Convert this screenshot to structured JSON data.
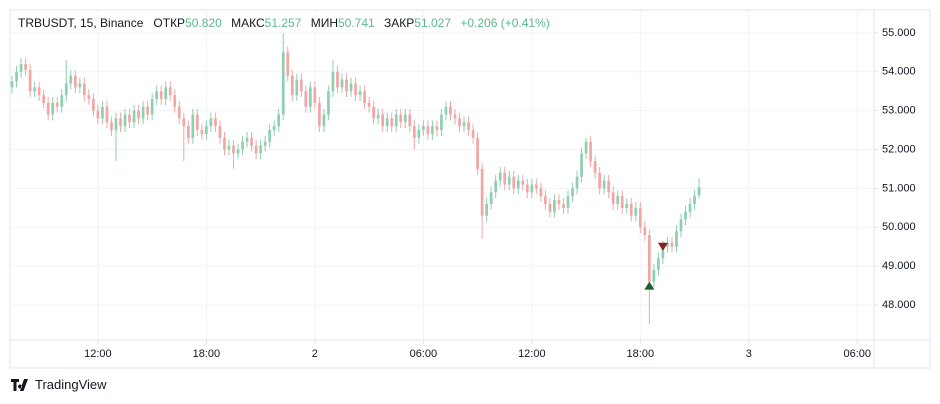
{
  "chart_data": {
    "type": "candlestick",
    "header": {
      "symbol": "TRBUSDT, 15, Binance",
      "open_label": "ОТКР",
      "open": "50.820",
      "high_label": "МАКС",
      "high": "51.257",
      "low_label": "МИН",
      "low": "50.741",
      "close_label": "ЗАКР",
      "close": "51.027",
      "change": "+0.206 (+0.41%)"
    },
    "brand": "TradingView",
    "up_color": "#8fcfb0",
    "down_color": "#f2a6a6",
    "xlim": [
      -0.45,
      190.7
    ],
    "ylim": [
      47.1,
      55.59
    ],
    "grid": true,
    "xticks": [
      {
        "value": 19,
        "label": "12:00"
      },
      {
        "value": 43,
        "label": "18:00"
      },
      {
        "value": 67,
        "label": "2"
      },
      {
        "value": 91,
        "label": "06:00"
      },
      {
        "value": 115,
        "label": "12:00"
      },
      {
        "value": 139,
        "label": "18:00"
      },
      {
        "value": 163,
        "label": "3"
      },
      {
        "value": 187,
        "label": "06:00"
      }
    ],
    "yticks": [
      {
        "value": 48,
        "label": "48.000"
      },
      {
        "value": 49,
        "label": "49.000"
      },
      {
        "value": 50,
        "label": "50.000"
      },
      {
        "value": 51,
        "label": "51.000"
      },
      {
        "value": 52,
        "label": "52.000"
      },
      {
        "value": 53,
        "label": "53.000"
      },
      {
        "value": 54,
        "label": "54.000"
      },
      {
        "value": 55,
        "label": "55.000"
      }
    ],
    "open": [
      53.6,
      53.75,
      54.0,
      54.2,
      54.05,
      53.5,
      53.6,
      53.4,
      53.2,
      52.9,
      53.2,
      53.1,
      53.4,
      53.7,
      53.9,
      53.6,
      53.7,
      53.4,
      53.3,
      53.0,
      52.8,
      53.1,
      52.7,
      52.5,
      52.8,
      52.6,
      52.9,
      52.7,
      53.0,
      52.8,
      53.1,
      52.9,
      53.3,
      53.5,
      53.3,
      53.6,
      53.4,
      53.1,
      52.8,
      52.6,
      52.3,
      52.9,
      52.5,
      52.4,
      52.6,
      52.8,
      52.6,
      52.3,
      52.0,
      52.1,
      51.9,
      52.0,
      52.2,
      52.3,
      52.1,
      51.9,
      52.1,
      52.2,
      52.5,
      52.6,
      52.9,
      54.5,
      53.9,
      53.4,
      53.8,
      53.5,
      53.1,
      53.6,
      53.2,
      52.6,
      52.9,
      53.5,
      54.0,
      53.6,
      53.8,
      53.5,
      53.7,
      53.4,
      53.5,
      53.2,
      53.1,
      52.8,
      52.9,
      52.6,
      52.8,
      52.6,
      52.9,
      52.7,
      52.9,
      52.6,
      52.3,
      52.5,
      52.6,
      52.4,
      52.6,
      52.5,
      52.9,
      53.1,
      52.9,
      52.8,
      52.6,
      52.7,
      52.5,
      52.3,
      51.5,
      50.3,
      50.6,
      50.9,
      51.2,
      51.4,
      51.1,
      51.3,
      51.0,
      51.2,
      51.1,
      50.9,
      51.1,
      51.0,
      50.8,
      50.6,
      50.4,
      50.7,
      50.6,
      50.5,
      50.8,
      51.0,
      51.3,
      51.9,
      52.2,
      51.7,
      51.4,
      51.0,
      51.2,
      50.9,
      50.6,
      50.8,
      50.5,
      50.6,
      50.3,
      50.5,
      50.0,
      49.8,
      48.6,
      48.9,
      49.2,
      49.5,
      49.6,
      49.5,
      49.9,
      50.2,
      50.4,
      50.6,
      50.82
    ],
    "high": [
      53.9,
      54.15,
      54.35,
      54.35,
      54.2,
      53.75,
      53.75,
      53.55,
      53.35,
      53.35,
      53.35,
      53.55,
      54.3,
      54.05,
      54.05,
      53.85,
      53.85,
      53.55,
      53.45,
      53.15,
      53.25,
      53.25,
      52.85,
      52.95,
      52.95,
      53.05,
      53.05,
      53.15,
      53.15,
      53.25,
      53.25,
      53.45,
      53.65,
      53.65,
      53.75,
      53.75,
      53.55,
      53.25,
      52.95,
      52.75,
      53.05,
      53.05,
      52.65,
      52.75,
      52.95,
      52.95,
      52.75,
      52.45,
      52.25,
      52.25,
      52.15,
      52.35,
      52.45,
      52.45,
      52.25,
      52.25,
      52.35,
      52.65,
      52.75,
      53.05,
      55.0,
      54.65,
      54.05,
      53.95,
      53.95,
      53.65,
      53.75,
      53.75,
      53.35,
      53.05,
      53.65,
      54.3,
      54.15,
      53.95,
      53.95,
      53.85,
      53.85,
      53.65,
      53.65,
      53.35,
      53.25,
      53.05,
      53.05,
      52.95,
      52.95,
      53.05,
      53.05,
      53.05,
      53.05,
      52.75,
      52.65,
      52.75,
      52.75,
      52.75,
      52.75,
      53.05,
      53.25,
      53.25,
      53.05,
      52.95,
      52.85,
      52.85,
      52.65,
      52.45,
      51.65,
      50.75,
      51.05,
      51.35,
      51.55,
      51.55,
      51.45,
      51.45,
      51.35,
      51.35,
      51.25,
      51.25,
      51.25,
      51.15,
      50.95,
      50.75,
      50.85,
      50.85,
      50.75,
      50.95,
      51.15,
      51.45,
      52.05,
      52.3,
      52.35,
      51.85,
      51.55,
      51.35,
      51.35,
      51.05,
      50.95,
      50.95,
      50.75,
      50.75,
      50.65,
      50.65,
      50.15,
      49.95,
      49.05,
      49.35,
      49.65,
      49.75,
      49.75,
      50.05,
      50.35,
      50.55,
      50.75,
      50.95,
      51.257
    ],
    "low": [
      53.45,
      53.6,
      53.85,
      53.9,
      53.35,
      53.35,
      53.25,
      53.05,
      52.75,
      52.75,
      52.95,
      52.95,
      53.25,
      53.55,
      53.45,
      53.45,
      53.25,
      53.15,
      52.85,
      52.65,
      52.65,
      52.55,
      52.35,
      51.7,
      52.45,
      52.45,
      52.55,
      52.55,
      52.65,
      52.65,
      52.75,
      52.75,
      53.15,
      53.15,
      53.15,
      53.25,
      52.95,
      52.65,
      51.7,
      52.15,
      52.15,
      52.35,
      52.25,
      52.25,
      52.45,
      52.45,
      52.15,
      51.85,
      51.85,
      51.5,
      51.75,
      51.85,
      52.05,
      51.95,
      51.75,
      51.75,
      51.95,
      52.05,
      52.35,
      52.45,
      52.75,
      53.75,
      53.25,
      53.25,
      53.35,
      52.95,
      52.95,
      53.05,
      52.45,
      52.45,
      52.75,
      53.35,
      53.45,
      53.45,
      53.35,
      53.35,
      53.25,
      53.25,
      53.05,
      52.95,
      52.65,
      52.65,
      52.45,
      52.45,
      52.45,
      52.45,
      52.55,
      52.55,
      52.45,
      52.0,
      52.15,
      52.35,
      52.25,
      52.25,
      52.35,
      52.35,
      52.75,
      52.75,
      52.65,
      52.45,
      52.45,
      52.35,
      52.15,
      51.35,
      49.7,
      50.15,
      50.45,
      50.75,
      51.05,
      50.95,
      50.95,
      50.85,
      50.85,
      50.95,
      50.75,
      50.75,
      50.85,
      50.65,
      50.45,
      50.25,
      50.25,
      50.45,
      50.35,
      50.35,
      50.65,
      50.85,
      51.15,
      51.75,
      51.55,
      51.25,
      50.85,
      50.85,
      50.75,
      50.45,
      50.45,
      50.35,
      50.35,
      50.15,
      50.15,
      49.85,
      49.65,
      47.5,
      48.45,
      48.75,
      49.05,
      49.35,
      49.35,
      49.35,
      49.75,
      50.05,
      50.25,
      50.45,
      50.741
    ],
    "close": [
      53.75,
      54.0,
      54.2,
      54.05,
      53.5,
      53.6,
      53.4,
      53.2,
      52.9,
      53.2,
      53.1,
      53.4,
      53.7,
      53.9,
      53.6,
      53.7,
      53.4,
      53.3,
      53.0,
      52.8,
      53.1,
      52.7,
      52.5,
      52.8,
      52.6,
      52.9,
      52.7,
      53.0,
      52.8,
      53.1,
      52.9,
      53.3,
      53.5,
      53.3,
      53.6,
      53.4,
      53.1,
      52.8,
      52.6,
      52.3,
      52.9,
      52.5,
      52.4,
      52.6,
      52.8,
      52.6,
      52.3,
      52.0,
      52.1,
      51.9,
      52.0,
      52.2,
      52.3,
      52.1,
      51.9,
      52.1,
      52.2,
      52.5,
      52.6,
      52.9,
      54.5,
      53.9,
      53.4,
      53.8,
      53.5,
      53.1,
      53.6,
      53.2,
      52.6,
      52.9,
      53.5,
      54.0,
      53.6,
      53.8,
      53.5,
      53.7,
      53.4,
      53.5,
      53.2,
      53.1,
      52.8,
      52.9,
      52.6,
      52.8,
      52.6,
      52.9,
      52.7,
      52.9,
      52.6,
      52.3,
      52.5,
      52.6,
      52.4,
      52.6,
      52.5,
      52.9,
      53.1,
      52.9,
      52.8,
      52.6,
      52.7,
      52.5,
      52.3,
      51.5,
      50.3,
      50.6,
      50.9,
      51.2,
      51.4,
      51.1,
      51.3,
      51.0,
      51.2,
      51.1,
      50.9,
      51.1,
      51.0,
      50.8,
      50.6,
      50.4,
      50.7,
      50.6,
      50.5,
      50.8,
      51.0,
      51.3,
      51.9,
      52.2,
      51.7,
      51.4,
      51.0,
      51.2,
      50.9,
      50.6,
      50.8,
      50.5,
      50.6,
      50.3,
      50.5,
      50.0,
      49.8,
      48.6,
      48.9,
      49.2,
      49.5,
      49.6,
      49.5,
      49.9,
      50.2,
      50.4,
      50.6,
      50.8,
      51.027
    ],
    "markers": [
      {
        "x": 141,
        "y": 48.5,
        "shape": "up",
        "color": "#1e5b2e"
      },
      {
        "x": 144,
        "y": 49.5,
        "shape": "down",
        "color": "#8b1e1e"
      }
    ]
  }
}
